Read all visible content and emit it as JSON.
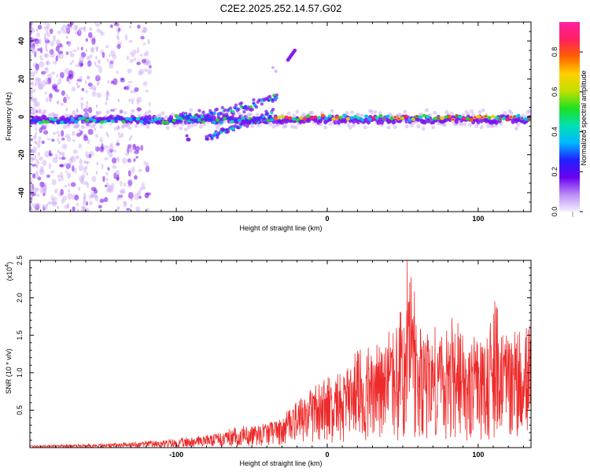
{
  "title": "C2E2.2025.252.14.57.G02",
  "colors": {
    "snr_line": "#ee2a2a",
    "frame": "#000000",
    "spectro_blob": "#7a10ee",
    "spectro_haze": "#c9a6f5",
    "colorbar": [
      "#f5f0ff",
      "#b98cf5",
      "#6a00f0",
      "#2020ff",
      "#00b8ff",
      "#00e0b0",
      "#20e020",
      "#c0e000",
      "#ffd000",
      "#ff6000",
      "#ff2060",
      "#ff20a0"
    ]
  },
  "chart_data": [
    {
      "type": "heatmap",
      "title": "C2E2.2025.252.14.57.G02",
      "xlabel": "Height of straight line (km)",
      "ylabel": "Frequency (Hz)",
      "xlim": [
        -197,
        135
      ],
      "ylim": [
        -50,
        50
      ],
      "xticks": [
        -100,
        0,
        100
      ],
      "xtick_labels": [
        "-100",
        "0",
        "100"
      ],
      "yticks": [
        -40,
        -20,
        0,
        20,
        40
      ],
      "ytick_labels": [
        "-40",
        "-20",
        "0",
        "20",
        "40"
      ],
      "colorbar": {
        "label": "Normalized spectral amplitude",
        "range": [
          0,
          0.95
        ],
        "ticks": [
          0.0,
          0.2,
          0.4,
          0.6,
          0.8
        ],
        "tick_labels": [
          "0.0",
          "0.2",
          "0.4",
          "0.6",
          "0.8"
        ]
      },
      "features": [
        {
          "name": "main band",
          "x": [
            -197,
            135
          ],
          "freq_hz": [
            -3,
            0
          ]
        },
        {
          "name": "upper arm",
          "x": [
            -100,
            -33
          ],
          "freq_hz": [
            0,
            12
          ]
        },
        {
          "name": "lower arm",
          "x": [
            -80,
            -35
          ],
          "freq_hz": [
            -12,
            2
          ]
        },
        {
          "name": "isolated burst",
          "x": [
            -26,
            -22
          ],
          "freq_hz": [
            30,
            35
          ]
        }
      ]
    },
    {
      "type": "line",
      "xlabel": "Height of straight line (km)",
      "ylabel": "SNR (10 * v/v)",
      "y_multiplier_label": "(x10",
      "y_multiplier_exp": "4",
      "y_multiplier_close": ")",
      "xlim": [
        -197,
        135
      ],
      "ylim": [
        0,
        2.5
      ],
      "xticks": [
        -100,
        0,
        100
      ],
      "xtick_labels": [
        "-100",
        "0",
        "100"
      ],
      "yticks": [
        0.5,
        1.0,
        1.5,
        2.0,
        2.5
      ],
      "ytick_labels": [
        "0.5",
        "1.0",
        "1.5",
        "2.0",
        "2.5"
      ],
      "series": [
        {
          "name": "SNR",
          "envelope": {
            "x": [
              -197,
              -150,
              -100,
              -80,
              -60,
              -45,
              -30,
              -20,
              -10,
              0,
              10,
              20,
              30,
              40,
              50,
              55,
              60,
              70,
              80,
              90,
              100,
              110,
              120,
              135
            ],
            "mean": [
              0.02,
              0.03,
              0.06,
              0.1,
              0.16,
              0.22,
              0.3,
              0.45,
              0.55,
              0.65,
              0.7,
              0.8,
              0.85,
              0.9,
              0.95,
              1.0,
              0.95,
              0.9,
              0.95,
              0.9,
              0.88,
              0.95,
              0.92,
              0.9
            ],
            "peak": [
              0.03,
              0.05,
              0.12,
              0.18,
              0.28,
              0.32,
              0.4,
              0.7,
              0.8,
              0.95,
              1.05,
              1.3,
              1.4,
              1.55,
              1.9,
              2.5,
              1.8,
              1.6,
              1.8,
              1.6,
              1.45,
              2.0,
              1.55,
              1.65
            ]
          }
        }
      ]
    }
  ]
}
